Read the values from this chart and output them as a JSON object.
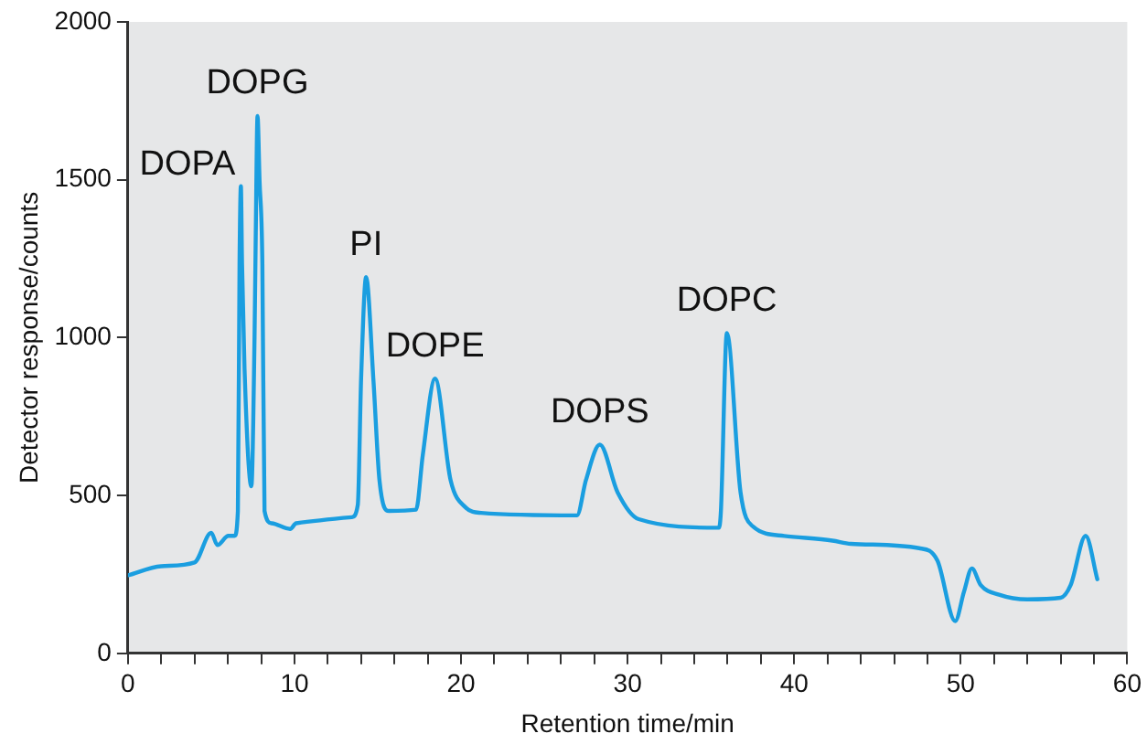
{
  "chart_data": {
    "type": "line",
    "xlabel": "Retention time/min",
    "ylabel": "Detector response/counts",
    "xlim": [
      0,
      60
    ],
    "ylim": [
      0,
      2000
    ],
    "xticks": [
      0,
      {
        "value": 2,
        "label": null
      },
      {
        "value": 4,
        "label": null
      },
      {
        "value": 6,
        "label": null
      },
      {
        "value": 8,
        "label": null
      },
      10,
      {
        "value": 12,
        "label": null
      },
      {
        "value": 14,
        "label": null
      },
      {
        "value": 16,
        "label": null
      },
      {
        "value": 18,
        "label": null
      },
      20,
      {
        "value": 22,
        "label": null
      },
      {
        "value": 24,
        "label": null
      },
      {
        "value": 26,
        "label": null
      },
      {
        "value": 28,
        "label": null
      },
      30,
      {
        "value": 32,
        "label": null
      },
      {
        "value": 34,
        "label": null
      },
      {
        "value": 36,
        "label": null
      },
      {
        "value": 38,
        "label": null
      },
      40,
      {
        "value": 42,
        "label": null
      },
      {
        "value": 44,
        "label": null
      },
      {
        "value": 46,
        "label": null
      },
      {
        "value": 48,
        "label": null
      },
      50,
      {
        "value": 52,
        "label": null
      },
      {
        "value": 54,
        "label": null
      },
      {
        "value": 56,
        "label": null
      },
      {
        "value": 58,
        "label": null
      },
      60
    ],
    "yticks": [
      0,
      500,
      1000,
      1500,
      2000
    ],
    "grid": false,
    "legend": false,
    "marker": "none",
    "line_style": "solid",
    "series": [
      {
        "color": "#1a9ee0",
        "x": [
          0,
          2,
          4,
          5,
          5.37,
          6.03,
          6.4,
          6.6,
          6.7,
          6.78,
          6.85,
          7.0,
          7.41,
          7.6,
          7.67,
          7.78,
          7.9,
          8.07,
          8.2,
          8.63,
          9.74,
          10.1,
          13.44,
          13.8,
          14.0,
          14.3,
          14.74,
          15.1,
          15.67,
          17.3,
          17.7,
          18.44,
          19.37,
          20.3,
          21.2,
          26.96,
          27.5,
          28.33,
          29.4,
          30.67,
          35.48,
          35.6,
          35.96,
          36.78,
          37.52,
          39.4,
          42.3,
          43.4,
          47.5,
          48.6,
          49.67,
          50.2,
          50.67,
          51.2,
          52.3,
          54,
          56,
          56.6,
          57.5,
          58.2
        ],
        "values": [
          247,
          276,
          288,
          382,
          343,
          372,
          372,
          450,
          1235,
          1480,
          1235,
          900,
          529,
          1000,
          1314,
          1702,
          1500,
          1235,
          451,
          412,
          394,
          412,
          431,
          470,
          872,
          1192,
          864,
          549,
          451,
          455,
          627,
          870,
          549,
          461,
          445,
          437,
          549,
          661,
          510,
          425,
          398,
          449,
          1014,
          510,
          402,
          372,
          357,
          347,
          333,
          294,
          102,
          196,
          269,
          216,
          186,
          171,
          176,
          216,
          372,
          235
        ]
      }
    ],
    "annotations": [
      {
        "text": "DOPA",
        "x": 6.78,
        "y": 1480
      },
      {
        "text": "DOPG",
        "x": 7.78,
        "y": 1702
      },
      {
        "text": "PI",
        "x": 14.3,
        "y": 1192
      },
      {
        "text": "DOPE",
        "x": 18.44,
        "y": 870
      },
      {
        "text": "DOPS",
        "x": 28.33,
        "y": 661
      },
      {
        "text": "DOPC",
        "x": 35.96,
        "y": 1014
      }
    ]
  }
}
